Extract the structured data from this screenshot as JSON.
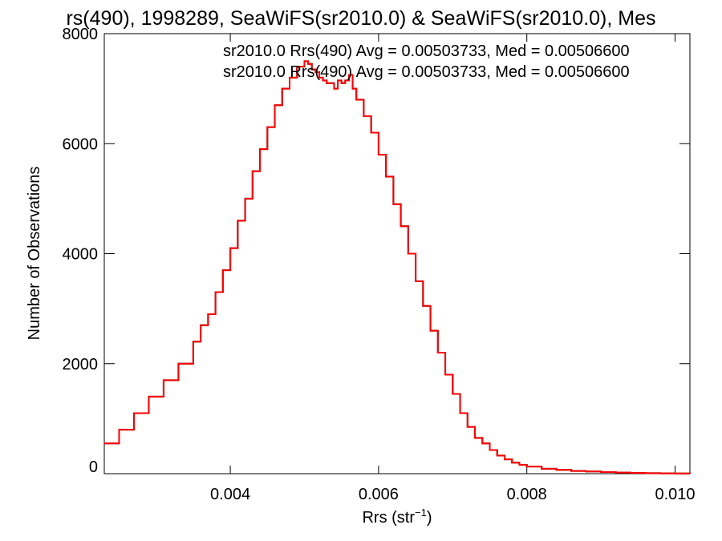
{
  "chart_data": {
    "type": "line",
    "title": "rs(490), 1998289, SeaWiFS(sr2010.0) & SeaWiFS(sr2010.0), Mes",
    "xlabel_main": "Rrs (str",
    "xlabel_sup": "−1",
    "xlabel_close": ")",
    "ylabel": "Number of Observations",
    "xlim": [
      0.0023,
      0.0102
    ],
    "ylim": [
      0,
      8000
    ],
    "x_ticks": [
      0.004,
      0.006,
      0.008,
      0.01
    ],
    "x_tick_labels": [
      "0.004",
      "0.006",
      "0.008",
      "0.010"
    ],
    "y_ticks": [
      0,
      2000,
      4000,
      6000,
      8000
    ],
    "y_tick_labels": [
      "0",
      "2000",
      "4000",
      "6000",
      "8000"
    ],
    "grid": false,
    "annotations": [
      {
        "text": "sr2010.0 Rrs(490) Avg = 0.00503733, Med = 0.00506600",
        "color": "#000000"
      },
      {
        "text": "sr2010.0 Rrs(490) Avg = 0.00503733, Med = 0.00506600",
        "color": "#ff0000"
      }
    ],
    "series": [
      {
        "style": "step",
        "color": "#000000",
        "x": [
          0.0023,
          0.0025,
          0.0027,
          0.0029,
          0.0031,
          0.0033,
          0.0035,
          0.0036,
          0.0037,
          0.0038,
          0.0039,
          0.004,
          0.0041,
          0.0042,
          0.0043,
          0.0044,
          0.0045,
          0.0046,
          0.0047,
          0.0048,
          0.0049,
          0.005,
          0.00505,
          0.0051,
          0.00515,
          0.0052,
          0.00525,
          0.0053,
          0.00535,
          0.0054,
          0.00545,
          0.0055,
          0.00555,
          0.0056,
          0.00565,
          0.0057,
          0.0058,
          0.0059,
          0.006,
          0.0061,
          0.0062,
          0.0063,
          0.0064,
          0.0065,
          0.0066,
          0.0067,
          0.0068,
          0.0069,
          0.007,
          0.0071,
          0.0072,
          0.0073,
          0.0074,
          0.0075,
          0.0076,
          0.0077,
          0.0078,
          0.0079,
          0.008,
          0.0082,
          0.0084,
          0.0086,
          0.0088,
          0.009,
          0.0092,
          0.0094,
          0.0096,
          0.0098,
          0.01,
          0.0102
        ],
        "y": [
          550,
          800,
          1100,
          1400,
          1700,
          2000,
          2400,
          2700,
          2900,
          3300,
          3700,
          4100,
          4600,
          5000,
          5500,
          5900,
          6300,
          6700,
          7000,
          7200,
          7400,
          7500,
          7450,
          7350,
          7300,
          7200,
          7150,
          7100,
          7100,
          7000,
          7150,
          7100,
          7150,
          7250,
          7000,
          6800,
          6500,
          6200,
          5800,
          5400,
          4900,
          4500,
          4000,
          3500,
          3050,
          2600,
          2200,
          1800,
          1450,
          1100,
          850,
          650,
          550,
          430,
          330,
          260,
          200,
          160,
          130,
          90,
          70,
          50,
          40,
          30,
          20,
          15,
          10,
          5,
          3,
          0
        ]
      },
      {
        "style": "step",
        "color": "#ff0000",
        "x": [
          0.0023,
          0.0025,
          0.0027,
          0.0029,
          0.0031,
          0.0033,
          0.0035,
          0.0036,
          0.0037,
          0.0038,
          0.0039,
          0.004,
          0.0041,
          0.0042,
          0.0043,
          0.0044,
          0.0045,
          0.0046,
          0.0047,
          0.0048,
          0.0049,
          0.005,
          0.00505,
          0.0051,
          0.00515,
          0.0052,
          0.00525,
          0.0053,
          0.00535,
          0.0054,
          0.00545,
          0.0055,
          0.00555,
          0.0056,
          0.00565,
          0.0057,
          0.0058,
          0.0059,
          0.006,
          0.0061,
          0.0062,
          0.0063,
          0.0064,
          0.0065,
          0.0066,
          0.0067,
          0.0068,
          0.0069,
          0.007,
          0.0071,
          0.0072,
          0.0073,
          0.0074,
          0.0075,
          0.0076,
          0.0077,
          0.0078,
          0.0079,
          0.008,
          0.0082,
          0.0084,
          0.0086,
          0.0088,
          0.009,
          0.0092,
          0.0094,
          0.0096,
          0.0098,
          0.01,
          0.0102
        ],
        "y": [
          550,
          800,
          1100,
          1400,
          1700,
          2000,
          2400,
          2700,
          2900,
          3300,
          3700,
          4100,
          4600,
          5000,
          5500,
          5900,
          6300,
          6700,
          7000,
          7200,
          7400,
          7500,
          7450,
          7350,
          7300,
          7200,
          7150,
          7100,
          7100,
          7000,
          7150,
          7100,
          7150,
          7250,
          7000,
          6800,
          6500,
          6200,
          5800,
          5400,
          4900,
          4500,
          4000,
          3500,
          3050,
          2600,
          2200,
          1800,
          1450,
          1100,
          850,
          650,
          550,
          430,
          330,
          260,
          200,
          160,
          130,
          90,
          70,
          50,
          40,
          30,
          20,
          15,
          10,
          5,
          3,
          0
        ]
      }
    ]
  }
}
